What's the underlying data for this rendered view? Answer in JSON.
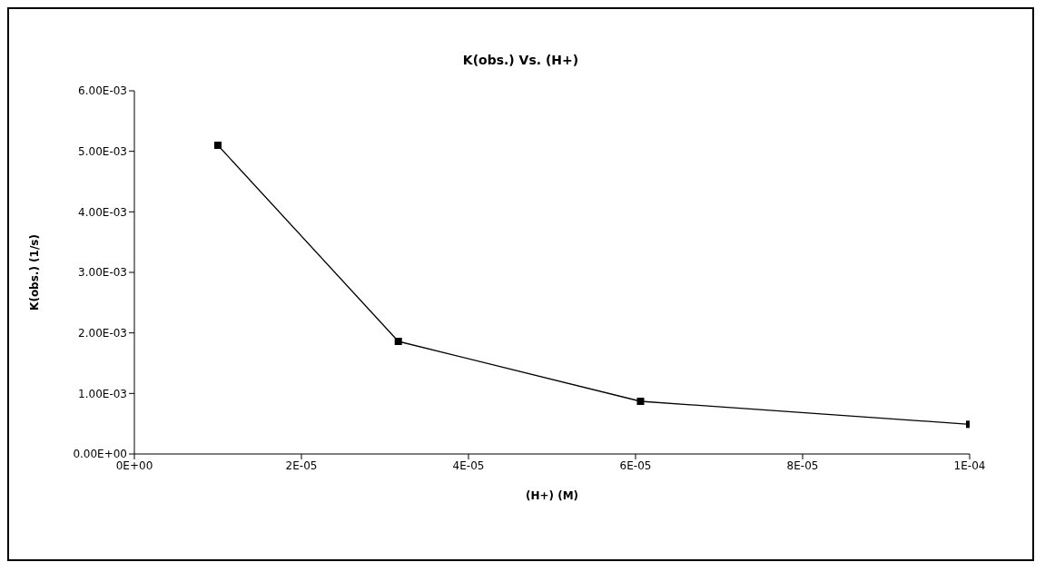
{
  "chart_data": {
    "type": "line",
    "title": "K(obs.) Vs. (H+)",
    "xlabel": "(H+) (M)",
    "ylabel": "K(obs.) (1/s)",
    "x": [
      1e-05,
      3.16e-05,
      6.06e-05,
      0.0001
    ],
    "series": [
      {
        "color": "#000000",
        "values": [
          0.0051,
          0.00186,
          0.00087,
          0.00049
        ]
      }
    ],
    "xlim": [
      0,
      0.0001
    ],
    "xticks": [
      {
        "value": 0,
        "label": "0E+00"
      },
      {
        "value": 2e-05,
        "label": "2E-05"
      },
      {
        "value": 4e-05,
        "label": "4E-05"
      },
      {
        "value": 6e-05,
        "label": "6E-05"
      },
      {
        "value": 8e-05,
        "label": "8E-05"
      },
      {
        "value": 0.0001,
        "label": "1E-04"
      }
    ],
    "ylim": [
      0,
      0.006
    ],
    "yticks": [
      {
        "value": 0,
        "label": "0.00E+00"
      },
      {
        "value": 0.001,
        "label": "1.00E-03"
      },
      {
        "value": 0.002,
        "label": "2.00E-03"
      },
      {
        "value": 0.003,
        "label": "3.00E-03"
      },
      {
        "value": 0.004,
        "label": "4.00E-03"
      },
      {
        "value": 0.005,
        "label": "5.00E-03"
      },
      {
        "value": 0.006,
        "label": "6.00E-03"
      }
    ],
    "grid": false,
    "legend": false,
    "marker": "square",
    "line_style": "solid"
  }
}
